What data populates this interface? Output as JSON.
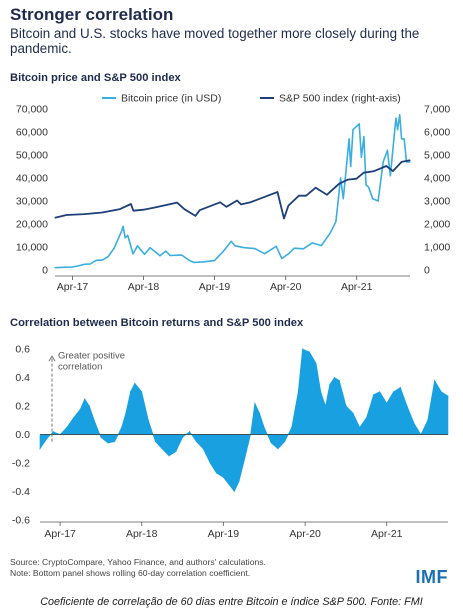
{
  "header": {
    "title": "Stronger correlation",
    "subtitle": "Bitcoin and U.S. stocks have moved together more closely during the pandemic."
  },
  "chart_data": [
    {
      "type": "line",
      "title": "Bitcoin price and S&P 500 index",
      "legend_position": "top",
      "x_ticks": [
        "Apr-17",
        "Apr-18",
        "Apr-19",
        "Apr-20",
        "Apr-21"
      ],
      "y_left_ticks": [
        "0",
        "10,000",
        "20,000",
        "30,000",
        "40,000",
        "50,000",
        "60,000",
        "70,000"
      ],
      "y_right_ticks": [
        "0",
        "1,000",
        "2,000",
        "3,000",
        "4,000",
        "5,000",
        "6,000",
        "7,000"
      ],
      "ylim_left": [
        0,
        70000
      ],
      "ylim_right": [
        0,
        7000
      ],
      "series": [
        {
          "name": "Bitcoin price (in USD)",
          "axis": "left",
          "color": "#3aaee0",
          "points": [
            [
              "2017-01-01",
              1000
            ],
            [
              "2017-03-01",
              1200
            ],
            [
              "2017-04-01",
              1300
            ],
            [
              "2017-05-01",
              1800
            ],
            [
              "2017-06-01",
              2500
            ],
            [
              "2017-07-01",
              2600
            ],
            [
              "2017-08-01",
              4200
            ],
            [
              "2017-09-01",
              4300
            ],
            [
              "2017-10-01",
              5800
            ],
            [
              "2017-11-01",
              9500
            ],
            [
              "2017-12-10",
              17000
            ],
            [
              "2017-12-17",
              19000
            ],
            [
              "2017-12-28",
              14000
            ],
            [
              "2018-01-10",
              15000
            ],
            [
              "2018-02-06",
              7000
            ],
            [
              "2018-03-01",
              10500
            ],
            [
              "2018-04-06",
              6800
            ],
            [
              "2018-05-05",
              9700
            ],
            [
              "2018-06-25",
              6200
            ],
            [
              "2018-07-25",
              8200
            ],
            [
              "2018-08-15",
              6300
            ],
            [
              "2018-10-15",
              6500
            ],
            [
              "2018-11-20",
              4300
            ],
            [
              "2018-12-15",
              3300
            ],
            [
              "2019-02-01",
              3500
            ],
            [
              "2019-04-01",
              4100
            ],
            [
              "2019-05-15",
              8000
            ],
            [
              "2019-06-26",
              12500
            ],
            [
              "2019-07-15",
              10500
            ],
            [
              "2019-09-01",
              9700
            ],
            [
              "2019-10-25",
              9300
            ],
            [
              "2019-12-15",
              7100
            ],
            [
              "2020-02-12",
              10300
            ],
            [
              "2020-03-12",
              5000
            ],
            [
              "2020-04-15",
              7000
            ],
            [
              "2020-05-15",
              9500
            ],
            [
              "2020-07-01",
              9200
            ],
            [
              "2020-08-15",
              11800
            ],
            [
              "2020-10-01",
              10600
            ],
            [
              "2020-11-15",
              16000
            ],
            [
              "2020-12-15",
              21000
            ],
            [
              "2021-01-08",
              40000
            ],
            [
              "2021-01-22",
              31000
            ],
            [
              "2021-02-21",
              57000
            ],
            [
              "2021-03-01",
              45000
            ],
            [
              "2021-03-13",
              61000
            ],
            [
              "2021-04-14",
              63500
            ],
            [
              "2021-04-25",
              49000
            ],
            [
              "2021-05-08",
              58000
            ],
            [
              "2021-05-19",
              37000
            ],
            [
              "2021-06-01",
              36000
            ],
            [
              "2021-06-22",
              31000
            ],
            [
              "2021-07-20",
              30000
            ],
            [
              "2021-08-15",
              47000
            ],
            [
              "2021-09-06",
              52000
            ],
            [
              "2021-09-21",
              41000
            ],
            [
              "2021-10-15",
              62000
            ],
            [
              "2021-10-20",
              66000
            ],
            [
              "2021-10-28",
              61000
            ],
            [
              "2021-11-08",
              67500
            ],
            [
              "2021-11-18",
              57000
            ],
            [
              "2021-12-01",
              57000
            ],
            [
              "2021-12-13",
              47000
            ],
            [
              "2021-12-31",
              47000
            ]
          ]
        },
        {
          "name": "S&P 500 index (right-axis)",
          "axis": "right",
          "color": "#1d3f7a",
          "points": [
            [
              "2017-01-01",
              2270
            ],
            [
              "2017-03-01",
              2390
            ],
            [
              "2017-06-01",
              2430
            ],
            [
              "2017-09-01",
              2500
            ],
            [
              "2017-12-01",
              2650
            ],
            [
              "2018-01-26",
              2870
            ],
            [
              "2018-02-08",
              2580
            ],
            [
              "2018-04-01",
              2620
            ],
            [
              "2018-06-01",
              2720
            ],
            [
              "2018-09-20",
              2930
            ],
            [
              "2018-10-29",
              2640
            ],
            [
              "2018-12-24",
              2350
            ],
            [
              "2019-01-15",
              2600
            ],
            [
              "2019-04-30",
              2945
            ],
            [
              "2019-06-01",
              2750
            ],
            [
              "2019-07-26",
              3020
            ],
            [
              "2019-08-15",
              2850
            ],
            [
              "2019-10-01",
              2940
            ],
            [
              "2019-12-31",
              3230
            ],
            [
              "2020-02-19",
              3390
            ],
            [
              "2020-03-23",
              2240
            ],
            [
              "2020-04-15",
              2800
            ],
            [
              "2020-06-08",
              3230
            ],
            [
              "2020-07-15",
              3230
            ],
            [
              "2020-09-02",
              3580
            ],
            [
              "2020-10-30",
              3270
            ],
            [
              "2020-12-31",
              3750
            ],
            [
              "2021-02-15",
              3930
            ],
            [
              "2021-03-31",
              3970
            ],
            [
              "2021-05-07",
              4230
            ],
            [
              "2021-06-30",
              4300
            ],
            [
              "2021-08-31",
              4520
            ],
            [
              "2021-10-04",
              4300
            ],
            [
              "2021-11-18",
              4700
            ],
            [
              "2021-12-31",
              4770
            ]
          ]
        }
      ]
    },
    {
      "type": "area",
      "title": "Correlation between Bitcoin returns and S&P 500 index",
      "annotation": [
        "Greater positive",
        "correlation"
      ],
      "x_ticks": [
        "Apr-17",
        "Apr-18",
        "Apr-19",
        "Apr-20",
        "Apr-21"
      ],
      "y_ticks": [
        "-0.6",
        "-0.4",
        "-0.2",
        "0.0",
        "0.2",
        "0.4",
        "0.6"
      ],
      "ylim": [
        -0.6,
        0.6
      ],
      "series": [
        {
          "name": "60-day correlation",
          "color": "#18a0e0",
          "points": [
            [
              "2017-01-01",
              -0.1
            ],
            [
              "2017-02-01",
              -0.03
            ],
            [
              "2017-03-01",
              0.02
            ],
            [
              "2017-04-01",
              0.0
            ],
            [
              "2017-05-01",
              0.05
            ],
            [
              "2017-06-01",
              0.12
            ],
            [
              "2017-07-01",
              0.18
            ],
            [
              "2017-07-20",
              0.25
            ],
            [
              "2017-08-10",
              0.2
            ],
            [
              "2017-09-01",
              0.1
            ],
            [
              "2017-10-01",
              -0.02
            ],
            [
              "2017-11-01",
              -0.06
            ],
            [
              "2017-12-01",
              -0.05
            ],
            [
              "2018-01-01",
              0.05
            ],
            [
              "2018-01-20",
              0.15
            ],
            [
              "2018-02-10",
              0.3
            ],
            [
              "2018-03-01",
              0.36
            ],
            [
              "2018-04-01",
              0.3
            ],
            [
              "2018-05-01",
              0.1
            ],
            [
              "2018-06-01",
              -0.05
            ],
            [
              "2018-07-01",
              -0.1
            ],
            [
              "2018-08-01",
              -0.15
            ],
            [
              "2018-09-01",
              -0.12
            ],
            [
              "2018-10-01",
              -0.02
            ],
            [
              "2018-11-01",
              0.02
            ],
            [
              "2018-12-01",
              -0.05
            ],
            [
              "2019-01-01",
              -0.1
            ],
            [
              "2019-02-01",
              -0.2
            ],
            [
              "2019-03-01",
              -0.27
            ],
            [
              "2019-04-01",
              -0.3
            ],
            [
              "2019-05-01",
              -0.36
            ],
            [
              "2019-05-20",
              -0.4
            ],
            [
              "2019-06-10",
              -0.33
            ],
            [
              "2019-07-01",
              -0.2
            ],
            [
              "2019-08-01",
              0.0
            ],
            [
              "2019-08-20",
              0.22
            ],
            [
              "2019-09-10",
              0.15
            ],
            [
              "2019-10-01",
              0.05
            ],
            [
              "2019-11-01",
              -0.06
            ],
            [
              "2019-12-01",
              -0.1
            ],
            [
              "2020-01-01",
              -0.05
            ],
            [
              "2020-02-01",
              0.05
            ],
            [
              "2020-03-01",
              0.3
            ],
            [
              "2020-03-20",
              0.6
            ],
            [
              "2020-04-20",
              0.58
            ],
            [
              "2020-05-20",
              0.5
            ],
            [
              "2020-06-10",
              0.3
            ],
            [
              "2020-07-01",
              0.2
            ],
            [
              "2020-07-20",
              0.35
            ],
            [
              "2020-08-10",
              0.4
            ],
            [
              "2020-09-01",
              0.38
            ],
            [
              "2020-10-01",
              0.2
            ],
            [
              "2020-11-01",
              0.15
            ],
            [
              "2020-12-01",
              0.05
            ],
            [
              "2021-01-01",
              0.12
            ],
            [
              "2021-02-01",
              0.28
            ],
            [
              "2021-03-01",
              0.3
            ],
            [
              "2021-04-01",
              0.22
            ],
            [
              "2021-05-01",
              0.3
            ],
            [
              "2021-06-01",
              0.33
            ],
            [
              "2021-07-01",
              0.2
            ],
            [
              "2021-08-01",
              0.08
            ],
            [
              "2021-09-01",
              0.0
            ],
            [
              "2021-10-01",
              0.1
            ],
            [
              "2021-11-01",
              0.38
            ],
            [
              "2021-12-01",
              0.3
            ],
            [
              "2021-12-31",
              0.27
            ]
          ]
        }
      ]
    }
  ],
  "footer": {
    "source": "Source: CryptoCompare, Yahoo Finance, and authors' calculations.",
    "note": "Note: Bottom panel shows rolling 60-day correlation coefficient.",
    "logo": "IMF",
    "caption": "Coeficiente de correlação de 60 dias entre Bitcoin e índice S&P 500. Fonte: FMI"
  }
}
